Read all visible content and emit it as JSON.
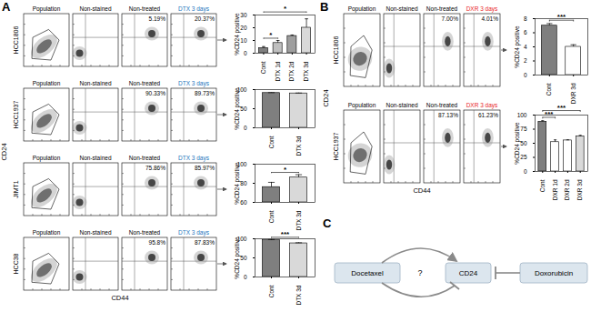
{
  "chart_data": [
    {
      "type": "bar",
      "categories": [
        "Cont",
        "DTX 1d",
        "DTX 2d",
        "DTX 3d"
      ],
      "values": [
        4,
        8,
        13.5,
        20
      ],
      "errors": [
        1.2,
        2,
        0.8,
        7
      ],
      "colors": [
        "#7f7f7f",
        "#bfbfbf",
        "#9e9e9e",
        "#d9d9d9"
      ],
      "y_label": "%CD24 positive",
      "ylim": [
        0,
        30
      ],
      "yticks": [
        0,
        10,
        20,
        30
      ],
      "significance": [
        {
          "between": [
            "Cont",
            "DTX 1d"
          ],
          "label": "*"
        },
        {
          "between": [
            "Cont",
            "DTX 3d"
          ],
          "label": "*"
        }
      ]
    },
    {
      "type": "bar",
      "categories": [
        "Cont",
        "DTX 3d"
      ],
      "values": [
        91,
        90
      ],
      "errors": [
        1,
        1
      ],
      "colors": [
        "#7f7f7f",
        "#d9d9d9"
      ],
      "y_label": "%CD24 positive",
      "ylim": [
        0,
        100
      ],
      "yticks": [
        0,
        50,
        100
      ],
      "significance": []
    },
    {
      "type": "bar",
      "categories": [
        "Cont",
        "DTX 3d"
      ],
      "values": [
        76,
        86
      ],
      "errors": [
        5,
        3
      ],
      "colors": [
        "#7f7f7f",
        "#d9d9d9"
      ],
      "y_label": "%CD24 positive",
      "ylim": [
        60,
        100
      ],
      "yticks": [
        60,
        80,
        100
      ],
      "significance": [
        {
          "between": [
            "Cont",
            "DTX 3d"
          ],
          "label": "*"
        }
      ]
    },
    {
      "type": "bar",
      "categories": [
        "Cont",
        "DTX 3d"
      ],
      "values": [
        96,
        88
      ],
      "errors": [
        2,
        1.5
      ],
      "colors": [
        "#7f7f7f",
        "#d9d9d9"
      ],
      "y_label": "%CD24 positive",
      "ylim": [
        0,
        100
      ],
      "yticks": [
        0,
        50,
        100
      ],
      "significance": [
        {
          "between": [
            "Cont",
            "DTX 3d"
          ],
          "label": "***"
        }
      ]
    },
    {
      "type": "bar",
      "categories": [
        "Cont",
        "DXR 3d"
      ],
      "values": [
        7,
        4
      ],
      "errors": [
        0.3,
        0.3
      ],
      "colors": [
        "#7f7f7f",
        "#ffffff"
      ],
      "y_label": "%CD24 positive",
      "ylim": [
        0,
        8
      ],
      "yticks": [
        0,
        2,
        4,
        6,
        8
      ],
      "significance": [
        {
          "between": [
            "Cont",
            "DXR 3d"
          ],
          "label": "***"
        }
      ]
    },
    {
      "type": "bar",
      "categories": [
        "Cont",
        "DXR 1d",
        "DXR 2d",
        "DXR 3d"
      ],
      "values": [
        88,
        52,
        55,
        62
      ],
      "errors": [
        2,
        4,
        1,
        2
      ],
      "colors": [
        "#7f7f7f",
        "#ffffff",
        "#ffffff",
        "#d9d9d9"
      ],
      "y_label": "%CD24 positive",
      "ylim": [
        0,
        100
      ],
      "yticks": [
        0,
        25,
        50,
        75,
        100
      ],
      "significance": [
        {
          "between": [
            "Cont",
            "DXR 1d"
          ],
          "label": "***"
        },
        {
          "between": [
            "Cont",
            "DXR 3d"
          ],
          "label": "***"
        }
      ]
    }
  ],
  "figure": {
    "panels": [
      {
        "label": "A",
        "y_label": "CD24",
        "x_label": "CD44",
        "columns": [
          "Population",
          "Non-stained",
          "Non-treated",
          "DTX 3 days"
        ],
        "treatment_color": "#1a75bc",
        "rows": [
          {
            "cell_line": "HCC1806",
            "percentages": [
              "5.19%",
              "20.37%"
            ]
          },
          {
            "cell_line": "HCC1937",
            "percentages": [
              "90.33%",
              "89.73%"
            ]
          },
          {
            "cell_line": "JIMT1",
            "percentages": [
              "75.86%",
              "85.97%"
            ]
          },
          {
            "cell_line": "HCC38",
            "percentages": [
              "95.8%",
              "87.83%"
            ]
          }
        ]
      },
      {
        "label": "B",
        "y_label": "CD24",
        "x_label": "CD44",
        "columns": [
          "Population",
          "Non-stained",
          "Non-treated",
          "DXR 3 days"
        ],
        "treatment_color": "#e8251f",
        "rows": [
          {
            "cell_line": "HCC1806",
            "percentages": [
              "7.00%",
              "4.01%"
            ]
          },
          {
            "cell_line": "HCC1937",
            "percentages": [
              "87.13%",
              "61.23%"
            ]
          }
        ]
      }
    ],
    "diagram": {
      "label": "C",
      "drug_1": "Docetaxel",
      "target": "CD24",
      "drug_2": "Doxorubicin",
      "unknown": "?"
    }
  }
}
